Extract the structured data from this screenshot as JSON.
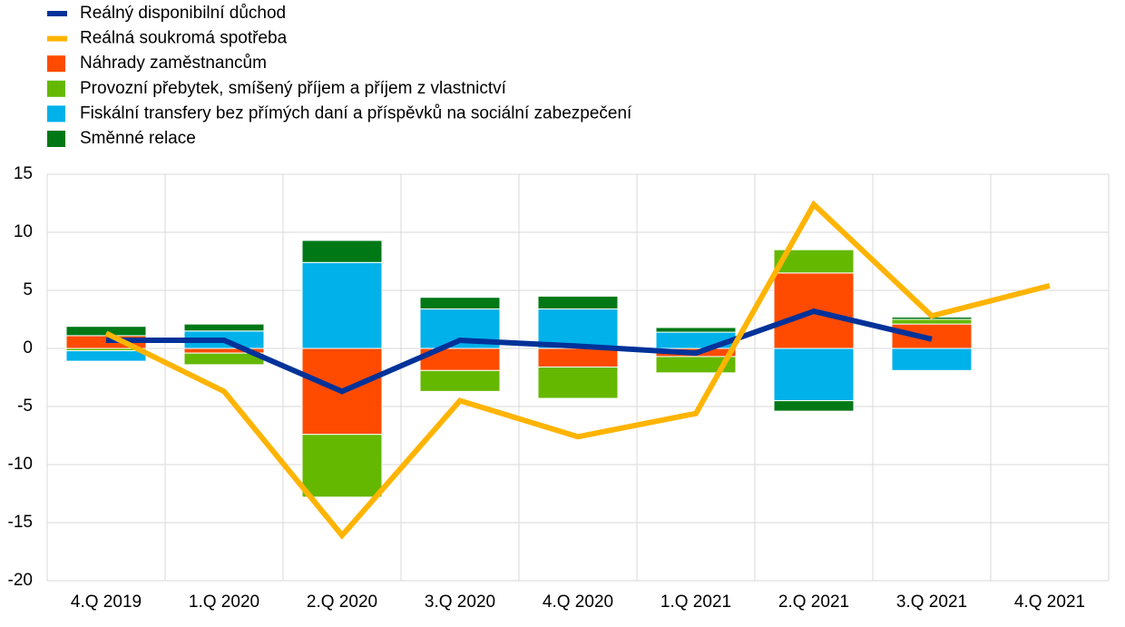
{
  "chart_data": {
    "type": "bar",
    "categories": [
      "4.Q 2019",
      "1.Q 2020",
      "2.Q 2020",
      "3.Q 2020",
      "4.Q 2020",
      "1.Q 2021",
      "2.Q 2021",
      "3.Q 2021",
      "4.Q 2021"
    ],
    "series": [
      {
        "name": "Reálný disponibilní důchod",
        "type": "line",
        "color": "#003299",
        "values": [
          0.7,
          0.7,
          -3.7,
          0.7,
          0.2,
          -0.4,
          3.2,
          0.8,
          null
        ]
      },
      {
        "name": "Reálná soukromá spotřeba",
        "type": "line",
        "color": "#ffb400",
        "values": [
          1.3,
          -3.7,
          -16.1,
          -4.5,
          -7.6,
          -5.6,
          12.4,
          2.8,
          5.4
        ]
      },
      {
        "name": "Náhrady zaměstnancům",
        "type": "bar",
        "color": "#ff4b00",
        "values": [
          1.1,
          -0.4,
          -7.4,
          -1.9,
          -1.6,
          -0.7,
          6.5,
          2.1,
          null
        ]
      },
      {
        "name": "Provozní přebytek, smíšený příjem a příjem z vlastnictví",
        "type": "bar",
        "color": "#65b800",
        "values": [
          -0.2,
          -1.0,
          -5.4,
          -1.8,
          -2.7,
          -1.4,
          2.0,
          0.4,
          null
        ]
      },
      {
        "name": "Fiskální transfery bez přímých daní a příspěvků na sociální zabezpečení",
        "type": "bar",
        "color": "#00b1ea",
        "values": [
          -0.9,
          1.5,
          7.4,
          3.4,
          3.4,
          1.4,
          -4.5,
          -1.9,
          null
        ]
      },
      {
        "name": "Směnné relace",
        "type": "bar",
        "color": "#007816",
        "values": [
          0.8,
          0.6,
          1.9,
          1.0,
          1.1,
          0.4,
          -0.9,
          0.2,
          null
        ]
      }
    ],
    "ylim": [
      -20,
      15
    ],
    "yticks": [
      -20,
      -15,
      -10,
      -5,
      0,
      5,
      10,
      15
    ],
    "grid": true
  }
}
